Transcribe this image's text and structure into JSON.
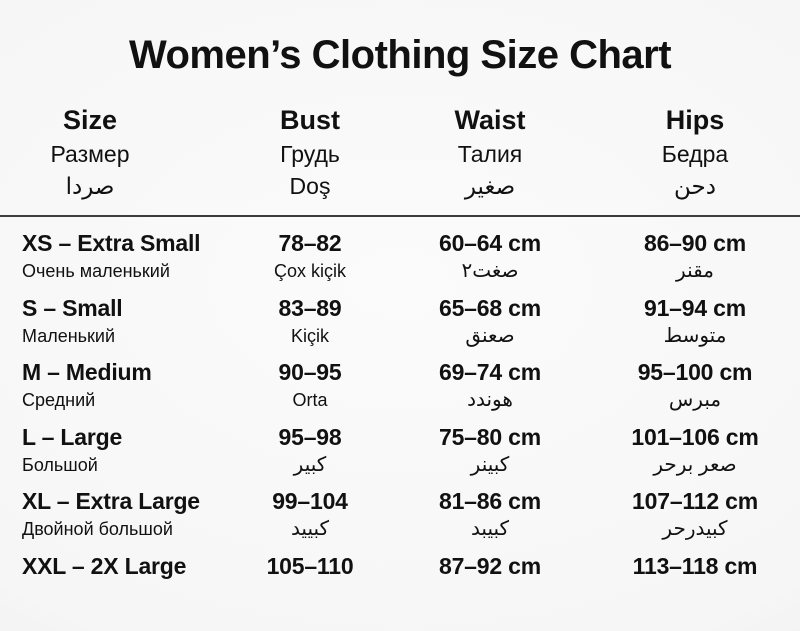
{
  "page": {
    "title": "Women’s Clothing Size Chart",
    "background_color": "#f6f6f6",
    "text_color": "#111111",
    "divider_color": "#3c3c3c"
  },
  "table": {
    "columns": [
      {
        "label": "Size",
        "label_ru": "Размер",
        "label_alt": "صردا"
      },
      {
        "label": "Bust",
        "label_ru": "Грудь",
        "label_alt": "Doş"
      },
      {
        "label": "Waist",
        "label_ru": "Талия",
        "label_alt": "صغير"
      },
      {
        "label": "Hips",
        "label_ru": "Бедра",
        "label_alt": "دحن"
      }
    ],
    "rows": [
      {
        "size": "XS – Extra Small",
        "size_sub": "Очень маленький",
        "bust": "78–82",
        "bust_sub": "Çox kiçik",
        "waist": "60–64 cm",
        "waist_sub": "صغت٢",
        "hips": "86–90 cm",
        "hips_sub": "مقنر"
      },
      {
        "size": "S – Small",
        "size_sub": "Маленький",
        "bust": "83–89",
        "bust_sub": "Kiçik",
        "waist": "65–68 cm",
        "waist_sub": "صعنق",
        "hips": "91–94 cm",
        "hips_sub": "متوسط"
      },
      {
        "size": "M – Medium",
        "size_sub": "Средний",
        "bust": "90–95",
        "bust_sub": "Orta",
        "waist": "69–74 cm",
        "waist_sub": "هوندد",
        "hips": "95–100 cm",
        "hips_sub": "مبرس"
      },
      {
        "size": "L – Large",
        "size_sub": "Большой",
        "bust": "95–98",
        "bust_sub": "كبير",
        "waist": "75–80 cm",
        "waist_sub": "كبينر",
        "hips": "101–106 cm",
        "hips_sub": "صعر برحر"
      },
      {
        "size": "XL – Extra Large",
        "size_sub": "Двойной большой",
        "bust": "99–104",
        "bust_sub": "كبييد",
        "waist": "81–86 cm",
        "waist_sub": "كبيبد",
        "hips": "107–112 cm",
        "hips_sub": "كبيدرحر"
      },
      {
        "size": "XXL – 2X Large",
        "size_sub": "",
        "bust": "105–110",
        "bust_sub": "",
        "waist": "87–92 cm",
        "waist_sub": "",
        "hips": "113–118 cm",
        "hips_sub": ""
      }
    ]
  }
}
